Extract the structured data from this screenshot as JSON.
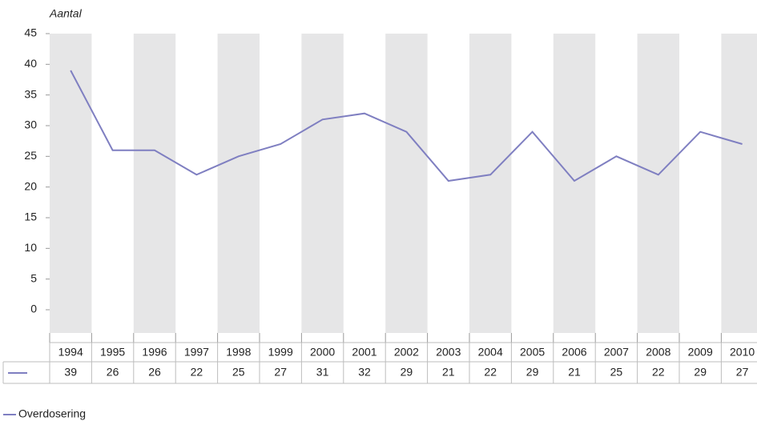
{
  "chart_data": {
    "type": "line",
    "y_label": "Aantal",
    "categories": [
      "1994",
      "1995",
      "1996",
      "1997",
      "1998",
      "1999",
      "2000",
      "2001",
      "2002",
      "2003",
      "2004",
      "2005",
      "2006",
      "2007",
      "2008",
      "2009",
      "2010"
    ],
    "series": [
      {
        "name": "Overdosering",
        "color": "#7f7fc1",
        "values": [
          39,
          26,
          26,
          22,
          25,
          27,
          31,
          32,
          29,
          21,
          22,
          29,
          21,
          25,
          22,
          29,
          27
        ]
      }
    ],
    "ylim": [
      0,
      45
    ],
    "yticks": [
      0,
      5,
      10,
      15,
      20,
      25,
      30,
      35,
      40,
      45
    ],
    "band_color": "#e6e6e7"
  }
}
